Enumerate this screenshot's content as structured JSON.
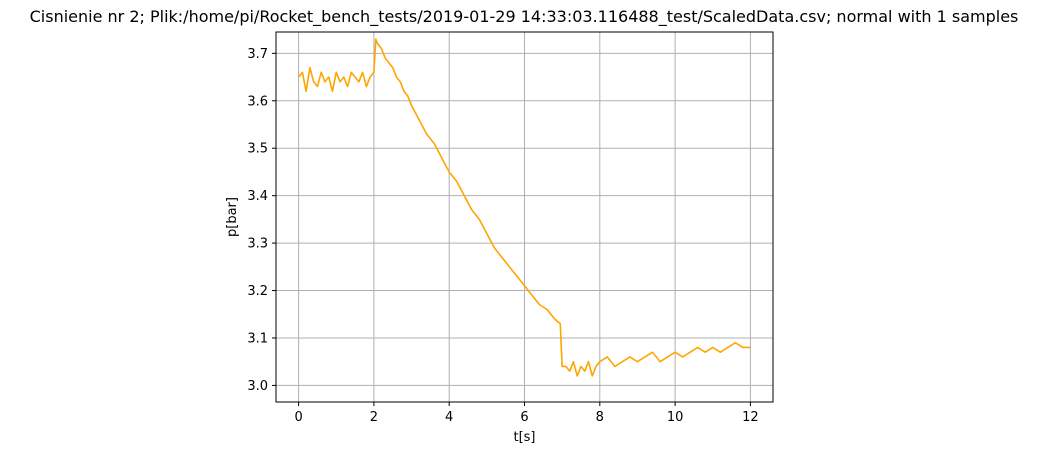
{
  "chart_data": {
    "type": "line",
    "title": "Cisnienie nr 2; Plik:/home/pi/Rocket_bench_tests/2019-01-29 14:33:03.116488_test/ScaledData.csv; normal with 1 samples",
    "xlabel": "t[s]",
    "ylabel": "p[bar]",
    "xlim": [
      -0.6,
      12.6
    ],
    "ylim": [
      2.965,
      3.745
    ],
    "xticks": [
      0,
      2,
      4,
      6,
      8,
      10,
      12
    ],
    "xtick_labels": [
      "0",
      "2",
      "4",
      "6",
      "8",
      "10",
      "12"
    ],
    "yticks": [
      3.0,
      3.1,
      3.2,
      3.3,
      3.4,
      3.5,
      3.6,
      3.7
    ],
    "ytick_labels": [
      "3.0",
      "3.1",
      "3.2",
      "3.3",
      "3.4",
      "3.5",
      "3.6",
      "3.7"
    ],
    "grid": true,
    "series": [
      {
        "color": "#ffa500",
        "x": [
          0,
          0.1,
          0.2,
          0.3,
          0.4,
          0.5,
          0.6,
          0.7,
          0.8,
          0.9,
          1.0,
          1.1,
          1.2,
          1.3,
          1.4,
          1.5,
          1.6,
          1.7,
          1.8,
          1.9,
          2.0,
          2.05,
          2.1,
          2.2,
          2.3,
          2.4,
          2.5,
          2.6,
          2.7,
          2.8,
          2.9,
          3.0,
          3.2,
          3.4,
          3.6,
          3.8,
          4.0,
          4.2,
          4.4,
          4.6,
          4.8,
          5.0,
          5.2,
          5.4,
          5.6,
          5.8,
          6.0,
          6.2,
          6.4,
          6.6,
          6.8,
          6.95,
          7.0,
          7.1,
          7.2,
          7.3,
          7.4,
          7.5,
          7.6,
          7.7,
          7.8,
          7.9,
          8.0,
          8.2,
          8.4,
          8.6,
          8.8,
          9.0,
          9.2,
          9.4,
          9.6,
          9.8,
          10.0,
          10.2,
          10.4,
          10.6,
          10.8,
          11.0,
          11.2,
          11.4,
          11.6,
          11.8,
          12.0
        ],
        "y": [
          3.65,
          3.66,
          3.62,
          3.67,
          3.64,
          3.63,
          3.66,
          3.64,
          3.65,
          3.62,
          3.66,
          3.64,
          3.65,
          3.63,
          3.66,
          3.65,
          3.64,
          3.66,
          3.63,
          3.65,
          3.66,
          3.73,
          3.72,
          3.71,
          3.69,
          3.68,
          3.67,
          3.65,
          3.64,
          3.62,
          3.61,
          3.59,
          3.56,
          3.53,
          3.51,
          3.48,
          3.45,
          3.43,
          3.4,
          3.37,
          3.35,
          3.32,
          3.29,
          3.27,
          3.25,
          3.23,
          3.21,
          3.19,
          3.17,
          3.16,
          3.14,
          3.13,
          3.04,
          3.04,
          3.03,
          3.05,
          3.02,
          3.04,
          3.03,
          3.05,
          3.02,
          3.04,
          3.05,
          3.06,
          3.04,
          3.05,
          3.06,
          3.05,
          3.06,
          3.07,
          3.05,
          3.06,
          3.07,
          3.06,
          3.07,
          3.08,
          3.07,
          3.08,
          3.07,
          3.08,
          3.09,
          3.08,
          3.08
        ]
      }
    ]
  }
}
